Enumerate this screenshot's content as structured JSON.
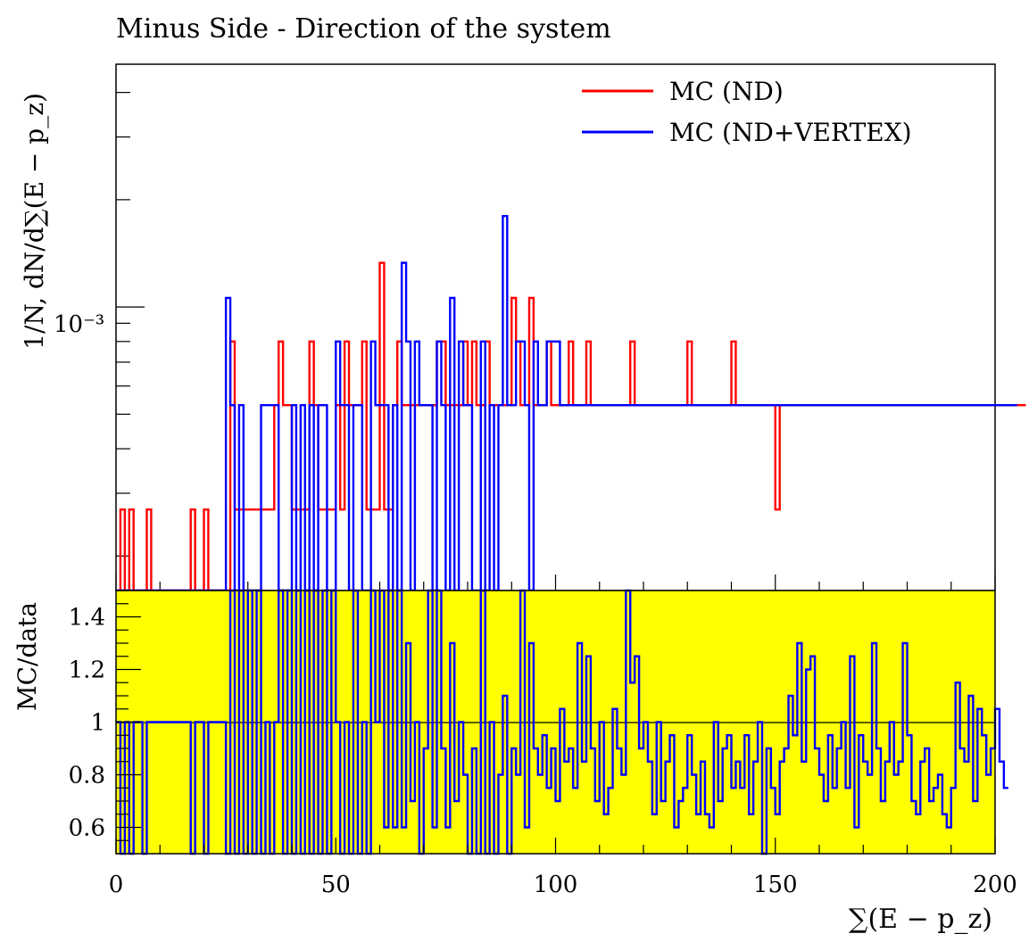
{
  "title": "Minus Side - Direction of the system",
  "chart_data": [
    {
      "type": "histogram-step",
      "panel": "main",
      "title": "Minus Side - Direction of the system",
      "xlabel": "∑(E − p_z)",
      "ylabel": "1/N, dN/d∑(E − p_z)",
      "log_y": true,
      "xlim": [
        0,
        200
      ],
      "ylim": [
        0.00016,
        0.0048
      ],
      "y_tick_label": "10⁻³",
      "y_tick_value": 0.001,
      "bin_width": 1,
      "colors": {
        "mc_nd": "#ff0000",
        "mc_nd_vertex": "#0000ff"
      },
      "legend": {
        "position": "top-right",
        "entries": [
          "MC (ND)",
          "MC (ND+VERTEX)"
        ]
      },
      "series": [
        {
          "name": "MC (ND)",
          "color": "#ff0000",
          "values": [
            0,
            0.00027,
            0,
            0.00027,
            0,
            0,
            0,
            0.00027,
            0,
            0,
            0,
            0,
            0,
            0,
            0,
            0,
            0,
            0.00027,
            0,
            0,
            0.00027,
            0,
            0,
            0,
            0,
            0,
            0.0008,
            0.00027,
            0.00027,
            0.00027,
            0.00027,
            0.00027,
            0.00027,
            0.00027,
            0.00027,
            0.00027,
            0.00053,
            0.0008,
            0.00053,
            0.00053,
            0.00027,
            0.00027,
            0.00027,
            0.00027,
            0.0008,
            0.00053,
            0.00027,
            0.00027,
            0.00027,
            0.00027,
            0.00053,
            0.00027,
            0.0008,
            0.00053,
            0.00053,
            0.00053,
            0.0008,
            0.00027,
            0.00027,
            0.00027,
            0.00133,
            0.00027,
            0.00027,
            0.00053,
            0.0008,
            0.00053,
            0.00053,
            0.00053,
            0.00053,
            0.00053,
            0.00053,
            0.00053,
            0.00053,
            0.0008,
            0.0008,
            0.00053,
            0.00053,
            0.00053,
            0.00053,
            0.0008,
            0.00053,
            0.0008,
            0.00053,
            0.00053,
            0.0008,
            0.00053,
            0.00053,
            0.00053,
            0.00053,
            0.00053,
            0.00106,
            0.0008,
            0.00053,
            0.00053,
            0.00106,
            0.00053,
            0.00053,
            0.00053,
            0.0008,
            0.00053,
            0.00053,
            0.00053,
            0.00053,
            0.0008,
            0.00053,
            0.00053,
            0.00053,
            0.0008,
            0.00053,
            0.00053,
            0.00053,
            0.00053,
            0.00053,
            0.00053,
            0.00053,
            0.00053,
            0.00053,
            0.0008,
            0.00053,
            0.00053,
            0.00053,
            0.00053,
            0.00053,
            0.00053,
            0.00053,
            0.00053,
            0.00053,
            0.00053,
            0.00053,
            0.00053,
            0.0008,
            0.00053,
            0.00053,
            0.00053,
            0.00053,
            0.00053,
            0.00053,
            0.00053,
            0.00053,
            0.00053,
            0.0008,
            0.00053,
            0.00053,
            0.00053,
            0.00053,
            0.00053,
            0.00053,
            0.00053,
            0.00053,
            0.00053,
            0.00027,
            0.00053,
            0.00053,
            0.00053,
            0.00053,
            0.00053,
            0.00053,
            0.00053,
            0.00053,
            0.00053,
            0.00053,
            0.00053,
            0.00053,
            0.00053,
            0.00053,
            0.00053,
            0.00053,
            0.00053,
            0.00053,
            0.00053,
            0.00053,
            0.00053,
            0.00053,
            0.00053,
            0.00053,
            0.00053,
            0.00053,
            0.00053,
            0.00053,
            0.00053,
            0.00053,
            0.00053,
            0.00053,
            0.00053,
            0.00053,
            0.00053,
            0.00053,
            0.00053,
            0.00053,
            0.00053,
            0.00053,
            0.00053,
            0.00053,
            0.00053,
            0.00053,
            0.00053,
            0.00053,
            0.00053,
            0.00053,
            0.00053,
            0.00053,
            0.00053,
            0.00053,
            0.00053,
            0.00053,
            0.00053,
            0.00053
          ]
        },
        {
          "name": "MC (ND+VERTEX)",
          "color": "#0000ff",
          "values": [
            0,
            0,
            0,
            0,
            0,
            0,
            0,
            0,
            0,
            0,
            0,
            0,
            0,
            0,
            0,
            0,
            0,
            0,
            0,
            0,
            0,
            0,
            0,
            0,
            0,
            0.00106,
            0.00053,
            0,
            0.00053,
            0,
            0,
            0,
            0,
            0.00053,
            0.00053,
            0.00053,
            0.00053,
            0,
            0,
            0,
            0.00053,
            0,
            0.00053,
            0,
            0.00053,
            0,
            0.00053,
            0.00053,
            0,
            0,
            0.0008,
            0.00053,
            0.00053,
            0,
            0.00053,
            0.00053,
            0,
            0,
            0.0008,
            0.00053,
            0.00053,
            0.00053,
            0,
            0.00053,
            0,
            0.00133,
            0.0008,
            0,
            0.0008,
            0.00053,
            0.00053,
            0.00053,
            0,
            0.0008,
            0.00053,
            0,
            0.00106,
            0,
            0.0008,
            0.00053,
            0.00053,
            0,
            0,
            0.0008,
            0,
            0.00053,
            0,
            0.00053,
            0.0018,
            0.00053,
            0.00053,
            0.0008,
            0.0008,
            0.00053,
            0,
            0.0008,
            0.00053,
            0.00053,
            0.0008,
            0.0008,
            0.0008,
            0.00053,
            0.00053,
            0.00053,
            0.00053,
            0.00053,
            0.00053,
            0.00053,
            0.00053,
            0.00053,
            0.00053,
            0.00053,
            0.00053,
            0.00053,
            0.00053,
            0.00053,
            0.00053,
            0.00053,
            0.00053,
            0.00053,
            0.00053,
            0.00053,
            0.00053,
            0.00053,
            0.00053,
            0.00053,
            0.00053,
            0.00053,
            0.00053,
            0.00053,
            0.00053,
            0.00053,
            0.00053,
            0.00053,
            0.00053,
            0.00053,
            0.00053,
            0.00053,
            0.00053,
            0.00053,
            0.00053,
            0.00053,
            0.00053,
            0.00053,
            0.00053,
            0.00053,
            0.00053,
            0.00053,
            0.00053,
            0.00053,
            0.00053,
            0.00053,
            0.00053,
            0.00053,
            0.00053,
            0.00053,
            0.00053,
            0.00053,
            0.00053,
            0.00053,
            0.00053,
            0.00053,
            0.00053,
            0.00053,
            0.00053,
            0.00053,
            0.00053,
            0.00053,
            0.00053,
            0.00053,
            0.00053,
            0.00053,
            0.00053,
            0.00053,
            0.00053,
            0.00053,
            0.00053,
            0.00053,
            0.00053,
            0.00053,
            0.00053,
            0.00053,
            0.00053,
            0.00053,
            0.00053,
            0.00053,
            0.00053,
            0.00053,
            0.00053,
            0.00053,
            0.00053,
            0.00053,
            0.00053,
            0.00053,
            0.00053,
            0.00053,
            0.00053,
            0.00053,
            0.00053,
            0.00053,
            0.00053,
            0.00053,
            0.00053,
            0.00053,
            0.00053
          ]
        }
      ]
    },
    {
      "type": "histogram-step",
      "panel": "ratio",
      "xlabel": "∑(E − p_z)",
      "ylabel": "MC/data",
      "xlim": [
        0,
        200
      ],
      "ylim": [
        0.5,
        1.5
      ],
      "x_ticks": [
        "0",
        "50",
        "100",
        "150",
        "200"
      ],
      "y_ticks": [
        "0.6",
        "0.8",
        "1",
        "1.2",
        "1.4"
      ],
      "reference_line": 1,
      "band_color": "#ffff00",
      "series": [
        {
          "name": "MC/data",
          "color": "#0000ff",
          "values": [
            1,
            0,
            1,
            0,
            1,
            1,
            0,
            1,
            1,
            1,
            1,
            1,
            1,
            1,
            1,
            1,
            1,
            0,
            1,
            1,
            0,
            1,
            1,
            1,
            1,
            0.5,
            1.5,
            0.5,
            1.5,
            0.5,
            1.5,
            0.5,
            1.5,
            0.5,
            1,
            0.5,
            1,
            1.5,
            0.5,
            1.5,
            0.5,
            1.5,
            0.5,
            1.5,
            0.5,
            1.5,
            0.5,
            1.5,
            0.5,
            1.5,
            1,
            0.5,
            1,
            0.5,
            1.5,
            0.5,
            1,
            0.5,
            1.5,
            1,
            1.5,
            0.6,
            1.5,
            0.6,
            1.5,
            0.6,
            1.3,
            0.7,
            1,
            0.5,
            0.9,
            1.5,
            0.6,
            1.5,
            0.9,
            0.6,
            1.3,
            0.7,
            1,
            0.8,
            0.5,
            0.9,
            0.5,
            1.5,
            0.5,
            1,
            0.5,
            0.8,
            1.1,
            0.5,
            0.9,
            0.8,
            1.5,
            0.6,
            1.3,
            0.9,
            0.8,
            0.95,
            0.75,
            0.9,
            0.7,
            1.05,
            0.85,
            0.9,
            0.75,
            1.3,
            0.85,
            1.25,
            0.9,
            0.7,
            1.0,
            0.65,
            0.75,
            1.05,
            0.9,
            0.8,
            1.5,
            1.15,
            1.25,
            0.9,
            1.0,
            0.85,
            0.65,
            1.0,
            0.7,
            0.85,
            0.95,
            0.6,
            0.7,
            0.75,
            0.95,
            0.8,
            0.65,
            0.85,
            0.65,
            0.6,
            1.0,
            0.7,
            0.9,
            0.95,
            0.75,
            0.85,
            0.75,
            0.95,
            0.65,
            0.85,
            1.0,
            0.5,
            0.9,
            0.75,
            0.65,
            0.85,
            0.9,
            1.1,
            0.95,
            1.3,
            0.85,
            1.2,
            1.25,
            0.9,
            0.8,
            0.7,
            0.95,
            0.75,
            0.9,
            1.0,
            0.75,
            1.25,
            0.6,
            0.95,
            0.85,
            0.8,
            1.3,
            0.9,
            0.7,
            0.85,
            1.0,
            0.8,
            0.85,
            1.3,
            0.95,
            0.7,
            0.65,
            0.85,
            0.9,
            0.7,
            0.75,
            0.8,
            0.65,
            0.6,
            0.75,
            1.15,
            0.9,
            0.85,
            1.1,
            0.7,
            1.05,
            0.95,
            0.8,
            0.9,
            1.05,
            0.85,
            0.75
          ]
        }
      ]
    }
  ]
}
